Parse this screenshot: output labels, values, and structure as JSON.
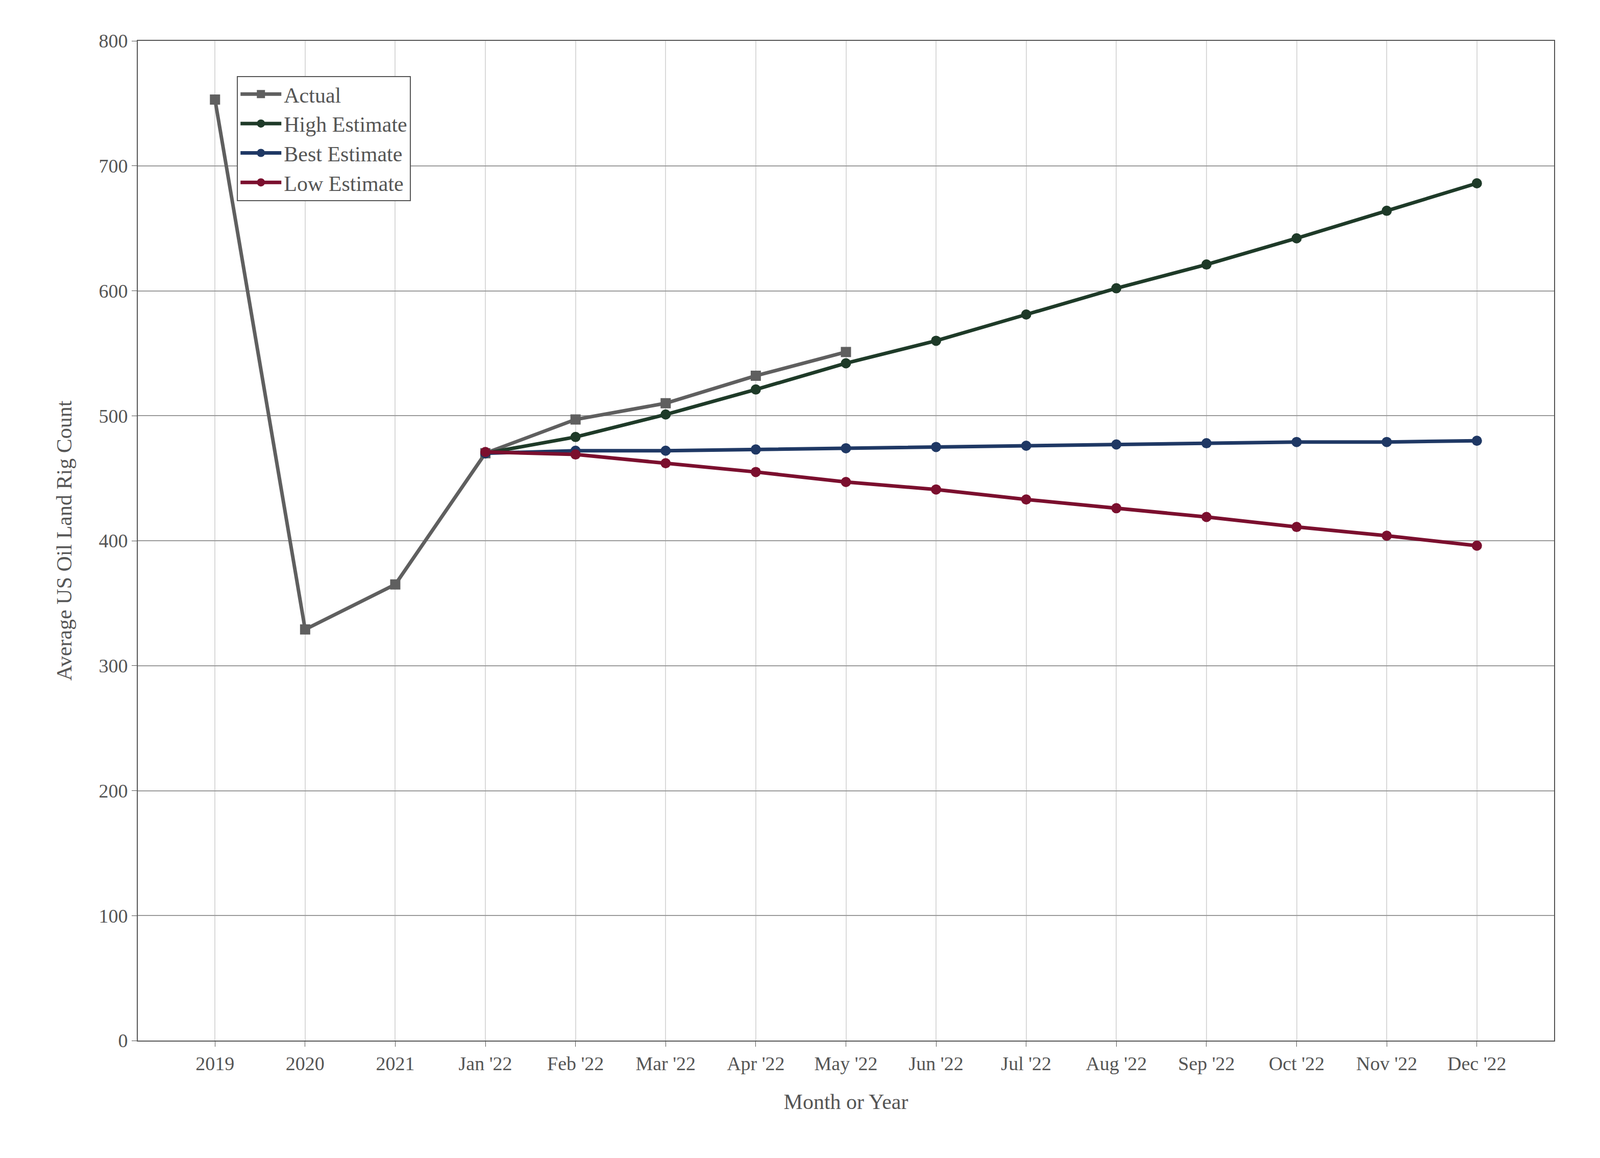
{
  "chart_data": {
    "type": "line",
    "x_label": "Month or Year",
    "y_label": "Average US Oil Land Rig Count",
    "categories": [
      "2019",
      "2020",
      "2021",
      "Jan '22",
      "Feb '22",
      "Mar '22",
      "Apr '22",
      "May '22",
      "Jun '22",
      "Jul '22",
      "Aug '22",
      "Sep '22",
      "Oct '22",
      "Nov '22",
      "Dec '22"
    ],
    "series": [
      {
        "name": "Actual",
        "color": "#5f5f5f",
        "marker": "square",
        "values": [
          753,
          329,
          365,
          470,
          497,
          510,
          532,
          551,
          null,
          null,
          null,
          null,
          null,
          null,
          null
        ]
      },
      {
        "name": "High Estimate",
        "color": "#1e3a28",
        "marker": "circle",
        "values": [
          null,
          null,
          null,
          470,
          483,
          501,
          521,
          542,
          560,
          581,
          602,
          621,
          642,
          664,
          686
        ]
      },
      {
        "name": "Best Estimate",
        "color": "#1f3864",
        "marker": "circle",
        "values": [
          null,
          null,
          null,
          470,
          472,
          472,
          473,
          474,
          475,
          476,
          477,
          478,
          479,
          479,
          480
        ]
      },
      {
        "name": "Low Estimate",
        "color": "#7b0f2e",
        "marker": "circle",
        "values": [
          null,
          null,
          null,
          471,
          469,
          462,
          455,
          447,
          441,
          433,
          426,
          419,
          411,
          404,
          396
        ]
      }
    ],
    "ylim": [
      0,
      800
    ],
    "yticks": [
      0,
      100,
      200,
      300,
      400,
      500,
      600,
      700,
      800
    ],
    "grid": true,
    "legend": "upper left"
  }
}
